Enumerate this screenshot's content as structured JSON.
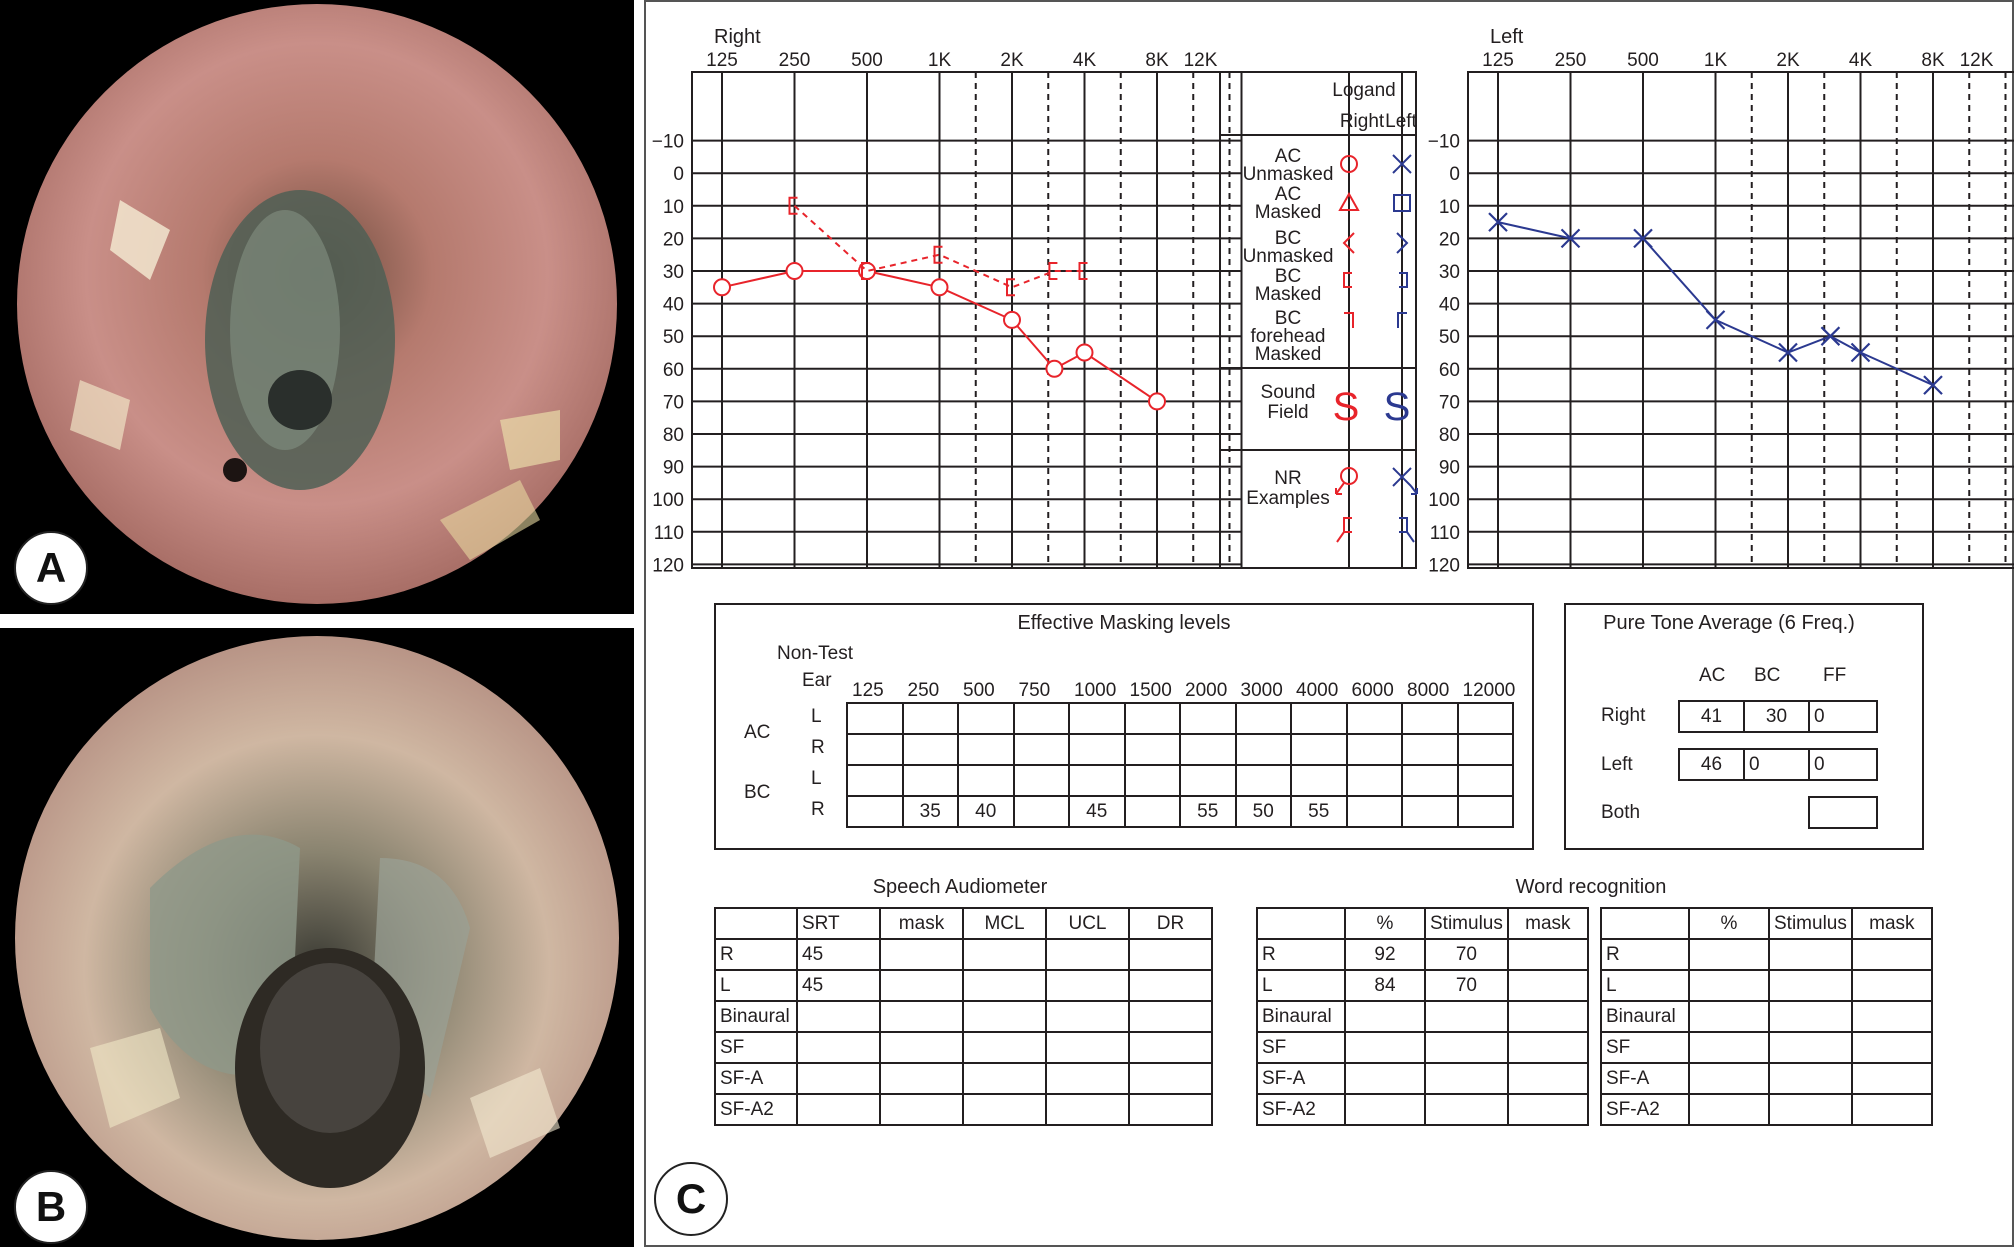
{
  "panels": {
    "a": "A",
    "b": "B",
    "c": "C"
  },
  "chart_data": [
    {
      "type": "line",
      "title": "Right",
      "x_ticks": [
        "125",
        "250",
        "500",
        "1K",
        "2K",
        "4K",
        "8K",
        "12K"
      ],
      "y_ticks": [
        "−10",
        "0",
        "10",
        "20",
        "30",
        "40",
        "50",
        "60",
        "70",
        "80",
        "90",
        "100",
        "110",
        "120"
      ],
      "ylim": [
        -10,
        120
      ],
      "y_inverted": true,
      "grid": true,
      "color": "#e8242b",
      "series": [
        {
          "name": "AC Unmasked",
          "marker": "circle",
          "line": "solid",
          "points": [
            [
              125,
              35
            ],
            [
              250,
              30
            ],
            [
              500,
              30
            ],
            [
              1000,
              35
            ],
            [
              2000,
              45
            ],
            [
              3000,
              60
            ],
            [
              4000,
              55
            ],
            [
              8000,
              70
            ]
          ]
        },
        {
          "name": "BC Masked",
          "marker": "bracket",
          "line": "dashed",
          "points": [
            [
              250,
              10
            ],
            [
              500,
              30
            ],
            [
              1000,
              25
            ],
            [
              2000,
              35
            ],
            [
              3000,
              30
            ],
            [
              4000,
              30
            ]
          ]
        }
      ]
    },
    {
      "type": "line",
      "title": "Left",
      "x_ticks": [
        "125",
        "250",
        "500",
        "1K",
        "2K",
        "4K",
        "8K",
        "12K"
      ],
      "y_ticks": [
        "−10",
        "0",
        "10",
        "20",
        "30",
        "40",
        "50",
        "60",
        "70",
        "80",
        "90",
        "100",
        "110",
        "120"
      ],
      "ylim": [
        -10,
        120
      ],
      "y_inverted": true,
      "grid": true,
      "color": "#2b3990",
      "series": [
        {
          "name": "AC Unmasked",
          "marker": "x",
          "line": "solid",
          "points": [
            [
              125,
              15
            ],
            [
              250,
              20
            ],
            [
              500,
              20
            ],
            [
              1000,
              45
            ],
            [
              2000,
              55
            ],
            [
              3000,
              50
            ],
            [
              4000,
              55
            ],
            [
              8000,
              65
            ]
          ]
        }
      ]
    }
  ],
  "legend": {
    "title": "Logand",
    "right": "Right",
    "left": "Left",
    "rows": [
      {
        "l1": "AC",
        "l2": "Unmasked"
      },
      {
        "l1": "AC",
        "l2": "Masked"
      },
      {
        "l1": "BC",
        "l2": "Unmasked"
      },
      {
        "l1": "BC",
        "l2": "Masked"
      },
      {
        "l1": "BC",
        "l2": "forehead",
        "l3": "Masked"
      },
      {
        "l1": "Sound",
        "l2": "Field"
      },
      {
        "l1": "NR",
        "l2": "Examples"
      }
    ],
    "sf_glyph": "S"
  },
  "masking": {
    "title": "Effective Masking levels",
    "non_test": "Non-Test",
    "ear": "Ear",
    "freqs": [
      "125",
      "250",
      "500",
      "750",
      "1000",
      "1500",
      "2000",
      "3000",
      "4000",
      "6000",
      "8000",
      "12000"
    ],
    "groups": [
      "AC",
      "BC"
    ],
    "rows": [
      {
        "ear": "L",
        "values": [
          "",
          "",
          "",
          "",
          "",
          "",
          "",
          "",
          "",
          "",
          "",
          ""
        ]
      },
      {
        "ear": "R",
        "values": [
          "",
          "",
          "",
          "",
          "",
          "",
          "",
          "",
          "",
          "",
          "",
          ""
        ]
      },
      {
        "ear": "L",
        "values": [
          "",
          "",
          "",
          "",
          "",
          "",
          "",
          "",
          "",
          "",
          "",
          ""
        ]
      },
      {
        "ear": "R",
        "values": [
          "",
          "35",
          "40",
          "",
          "45",
          "",
          "55",
          "50",
          "55",
          "",
          "",
          ""
        ]
      }
    ]
  },
  "pta": {
    "title": "Pure Tone Average (6 Freq.)",
    "headers": [
      "AC",
      "BC",
      "FF"
    ],
    "right_label": "Right",
    "left_label": "Left",
    "both_label": "Both",
    "right": [
      "41",
      "30",
      "0"
    ],
    "left": [
      "46",
      "0",
      "0"
    ],
    "both": ""
  },
  "speech": {
    "title": "Speech Audiometer",
    "headers": [
      "",
      "SRT",
      "mask",
      "MCL",
      "UCL",
      "DR"
    ],
    "rows": [
      [
        "R",
        "45",
        "",
        "",
        "",
        ""
      ],
      [
        "L",
        "45",
        "",
        "",
        "",
        ""
      ],
      [
        "Binaural",
        "",
        "",
        "",
        "",
        ""
      ],
      [
        "SF",
        "",
        "",
        "",
        "",
        ""
      ],
      [
        "SF-A",
        "",
        "",
        "",
        "",
        ""
      ],
      [
        "SF-A2",
        "",
        "",
        "",
        "",
        ""
      ]
    ]
  },
  "word": {
    "title": "Word recognition",
    "headers": [
      "",
      "%",
      "Stimulus",
      "mask"
    ],
    "rows1": [
      [
        "R",
        "92",
        "70",
        ""
      ],
      [
        "L",
        "84",
        "70",
        ""
      ],
      [
        "Binaural",
        "",
        "",
        ""
      ],
      [
        "SF",
        "",
        "",
        ""
      ],
      [
        "SF-A",
        "",
        "",
        ""
      ],
      [
        "SF-A2",
        "",
        "",
        ""
      ]
    ],
    "rows2": [
      [
        "R",
        "",
        "",
        ""
      ],
      [
        "L",
        "",
        "",
        ""
      ],
      [
        "Binaural",
        "",
        "",
        ""
      ],
      [
        "SF",
        "",
        "",
        ""
      ],
      [
        "SF-A",
        "",
        "",
        ""
      ],
      [
        "SF-A2",
        "",
        "",
        ""
      ]
    ]
  }
}
